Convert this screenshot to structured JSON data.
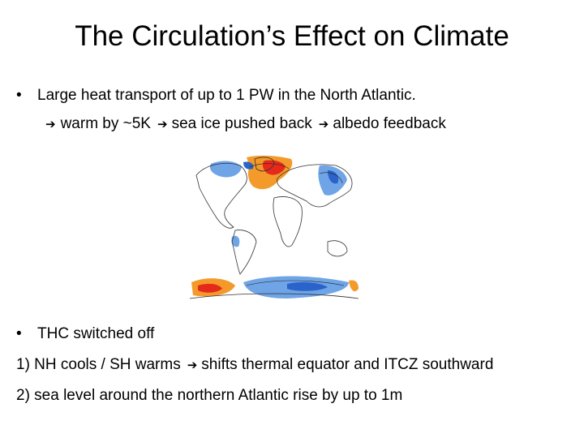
{
  "slide": {
    "title": "The Circulation’s Effect on Climate",
    "bullet1": "Large heat transport of up to 1 PW in the North Atlantic.",
    "chain": {
      "arrow": "➔",
      "step1": "warm by ~5K",
      "step2": "sea ice pushed back",
      "step3": "albedo feedback"
    },
    "bullet2": "THC switched off",
    "point1_a": "1) NH cools / SH warms",
    "point1_b": "shifts thermal equator and ITCZ southward",
    "point2": "2) sea level around the northern Atlantic rise by up to 1m"
  },
  "figure": {
    "image": "world-map-temperature-anomaly",
    "colors": {
      "warm_strong": "#e52a1c",
      "warm": "#f39a2a",
      "cool": "#6fa4e6",
      "cool_strong": "#2a63c9",
      "land_outline": "#333333"
    }
  }
}
